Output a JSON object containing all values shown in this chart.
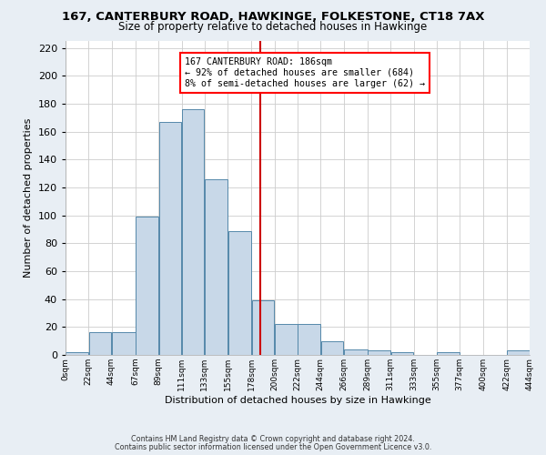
{
  "title": "167, CANTERBURY ROAD, HAWKINGE, FOLKESTONE, CT18 7AX",
  "subtitle": "Size of property relative to detached houses in Hawkinge",
  "xlabel": "Distribution of detached houses by size in Hawkinge",
  "ylabel": "Number of detached properties",
  "bar_left_edges": [
    0,
    22,
    44,
    67,
    89,
    111,
    133,
    155,
    178,
    200,
    222,
    244,
    266,
    289,
    311,
    333,
    355,
    377,
    400,
    422
  ],
  "bar_widths": [
    22,
    22,
    23,
    22,
    22,
    22,
    22,
    23,
    22,
    22,
    22,
    22,
    23,
    22,
    22,
    22,
    22,
    23,
    22,
    22
  ],
  "bar_heights": [
    2,
    16,
    16,
    99,
    167,
    176,
    126,
    89,
    39,
    22,
    22,
    10,
    4,
    3,
    2,
    0,
    2,
    0,
    0,
    3
  ],
  "bar_color": "#c8d8e8",
  "bar_edge_color": "#5588aa",
  "tick_labels": [
    "0sqm",
    "22sqm",
    "44sqm",
    "67sqm",
    "89sqm",
    "111sqm",
    "133sqm",
    "155sqm",
    "178sqm",
    "200sqm",
    "222sqm",
    "244sqm",
    "266sqm",
    "289sqm",
    "311sqm",
    "333sqm",
    "355sqm",
    "377sqm",
    "400sqm",
    "422sqm",
    "444sqm"
  ],
  "vline_x": 186,
  "vline_color": "#cc0000",
  "ylim": [
    0,
    225
  ],
  "yticks": [
    0,
    20,
    40,
    60,
    80,
    100,
    120,
    140,
    160,
    180,
    200,
    220
  ],
  "annotation_title": "167 CANTERBURY ROAD: 186sqm",
  "annotation_line1": "← 92% of detached houses are smaller (684)",
  "annotation_line2": "8% of semi-detached houses are larger (62) →",
  "footnote1": "Contains HM Land Registry data © Crown copyright and database right 2024.",
  "footnote2": "Contains public sector information licensed under the Open Government Licence v3.0.",
  "background_color": "#e8eef4",
  "plot_bg_color": "#ffffff",
  "grid_color": "#cccccc"
}
